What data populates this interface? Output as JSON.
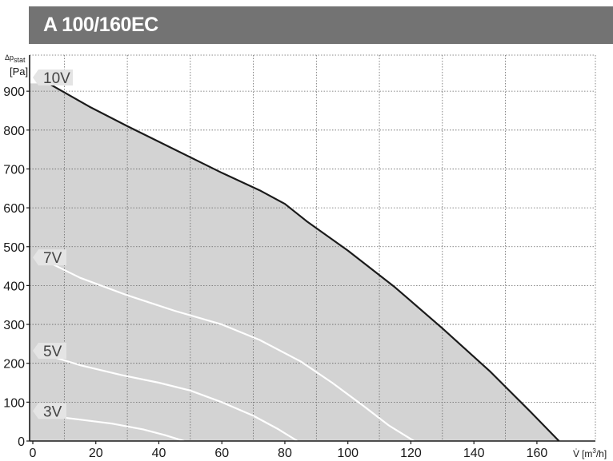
{
  "chart_data": {
    "type": "area",
    "title": "A 100/160EC",
    "ylabel": {
      "main": "Δp",
      "sub": "stat",
      "unit": "[Pa]"
    },
    "xlabel": {
      "main": "V̇",
      "unit_pre": "[m",
      "unit_sup": "3",
      "unit_post": "/h]"
    },
    "xlim": [
      0,
      170
    ],
    "ylim": [
      0,
      950
    ],
    "x_ticks": [
      0,
      20,
      40,
      60,
      80,
      100,
      120,
      140,
      160
    ],
    "y_ticks": [
      0,
      100,
      200,
      300,
      400,
      500,
      600,
      700,
      800,
      900
    ],
    "grid": true,
    "colors": {
      "area": "#d3d3d3",
      "max_curve": "#1a1a1a",
      "curves": "#ffffff",
      "title_bg": "#737373"
    },
    "series": [
      {
        "name": "10V",
        "x": [
          5,
          18,
          30,
          45,
          60,
          72,
          80,
          87,
          100,
          115,
          130,
          145,
          158,
          167
        ],
        "y": [
          920,
          860,
          810,
          750,
          690,
          645,
          610,
          565,
          490,
          395,
          290,
          180,
          75,
          0
        ]
      },
      {
        "name": "7V",
        "x": [
          5,
          15,
          30,
          45,
          60,
          72,
          85,
          95,
          105,
          113,
          121
        ],
        "y": [
          460,
          420,
          375,
          335,
          300,
          260,
          205,
          150,
          90,
          40,
          0
        ]
      },
      {
        "name": "5V",
        "x": [
          5,
          15,
          28,
          40,
          50,
          60,
          70,
          78,
          84
        ],
        "y": [
          220,
          195,
          170,
          150,
          130,
          100,
          65,
          30,
          0
        ]
      },
      {
        "name": "3V",
        "x": [
          5,
          15,
          25,
          35,
          42,
          48
        ],
        "y": [
          65,
          55,
          45,
          30,
          15,
          0
        ]
      }
    ]
  }
}
